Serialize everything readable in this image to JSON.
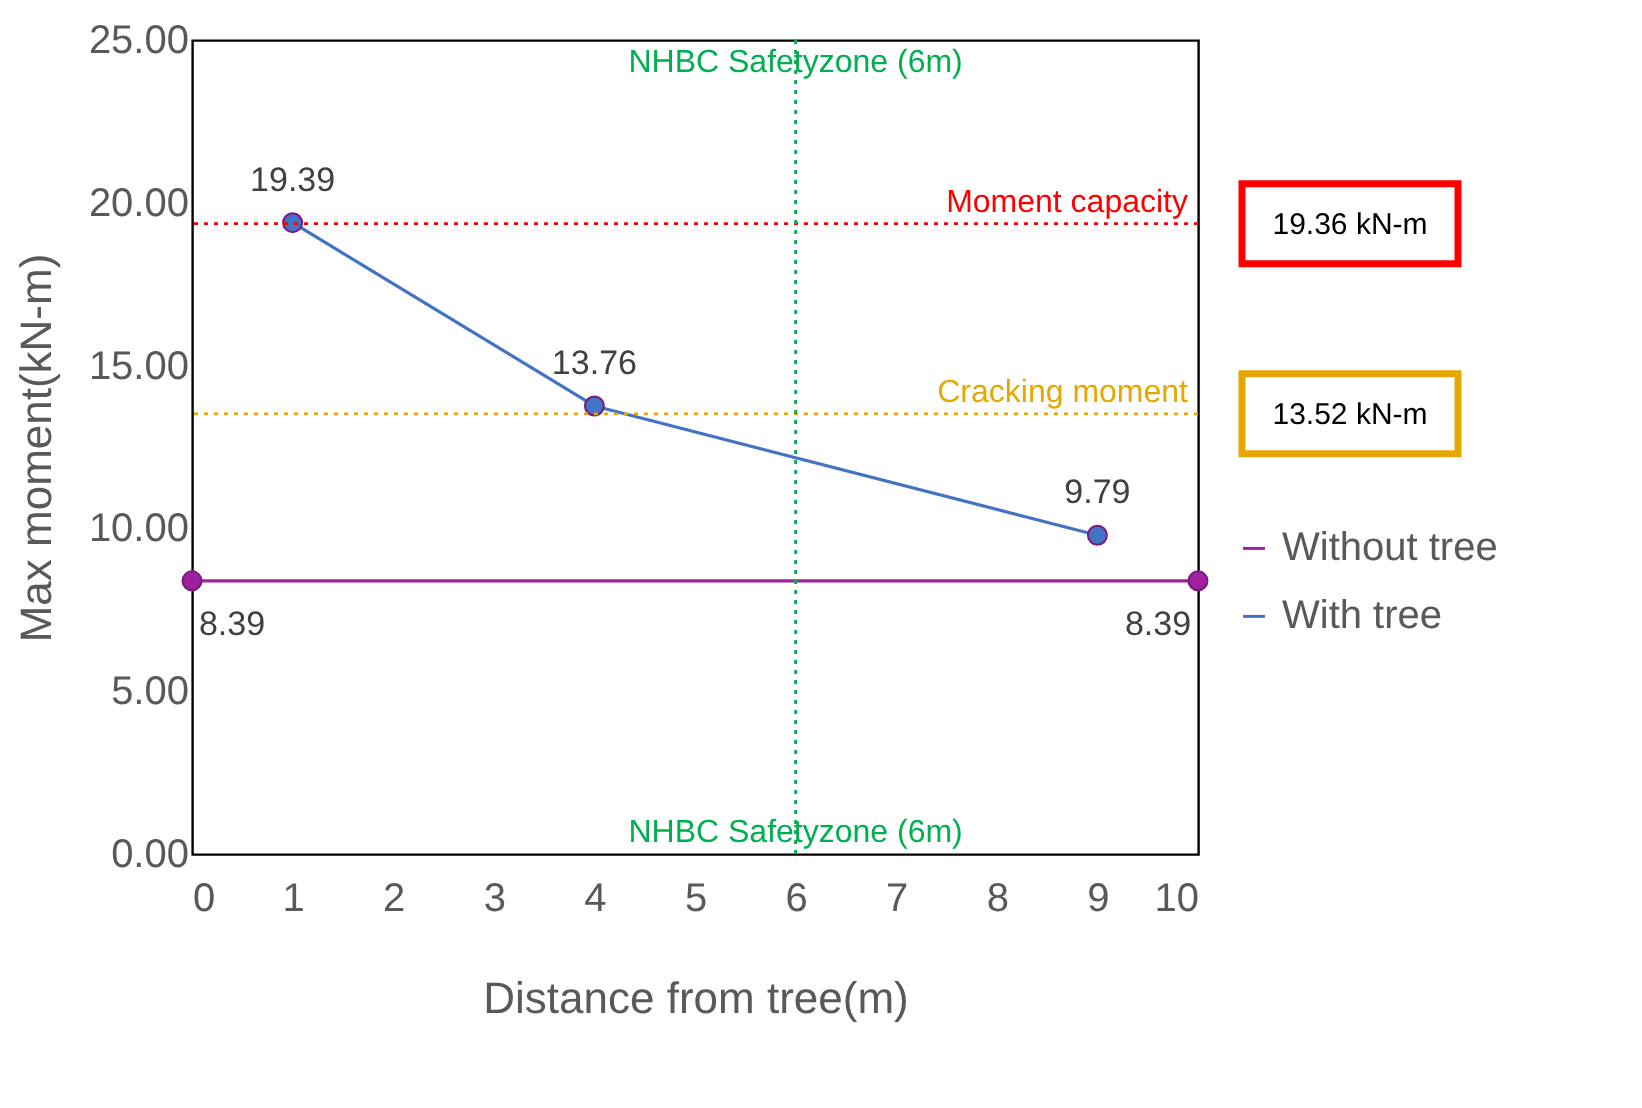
{
  "chart_data": {
    "type": "line",
    "xlabel": "Distance from tree(m)",
    "ylabel": "Max moment(kN-m)",
    "xlim": [
      0,
      10
    ],
    "xticks": [
      0,
      1,
      2,
      3,
      4,
      5,
      6,
      7,
      8,
      9,
      10
    ],
    "ylim": [
      0,
      25
    ],
    "yticks": [
      {
        "value": 0,
        "label": "0.00"
      },
      {
        "value": 5,
        "label": "5.00"
      },
      {
        "value": 10,
        "label": "10.00"
      },
      {
        "value": 15,
        "label": "15.00"
      },
      {
        "value": 20,
        "label": "20.00"
      },
      {
        "value": 25,
        "label": "25.00"
      }
    ],
    "series": [
      {
        "name": "Without tree",
        "color": "#a020a0",
        "x": [
          0,
          10
        ],
        "values": [
          8.39,
          8.39
        ]
      },
      {
        "name": "With tree",
        "color": "#4472c4",
        "x": [
          1,
          4,
          9
        ],
        "values": [
          19.39,
          13.76,
          9.79
        ]
      }
    ],
    "ref_lines": [
      {
        "axis": "y",
        "value": 19.36,
        "label": "Moment capacity",
        "color": "#ff0000",
        "line_style": "dotted"
      },
      {
        "axis": "y",
        "value": 13.52,
        "label": "Cracking moment",
        "color": "#e6a800",
        "line_style": "dotted"
      },
      {
        "axis": "x",
        "value": 6,
        "label": "NHBC Safetyzone (6m)",
        "color": "#00b050",
        "line_style": "dotted"
      }
    ],
    "annotations": [
      "19.36 kN-m",
      "13.52 kN-m"
    ],
    "data_labels": true,
    "marker": "circle",
    "line_style": "solid",
    "grid": false,
    "legend": "right"
  }
}
